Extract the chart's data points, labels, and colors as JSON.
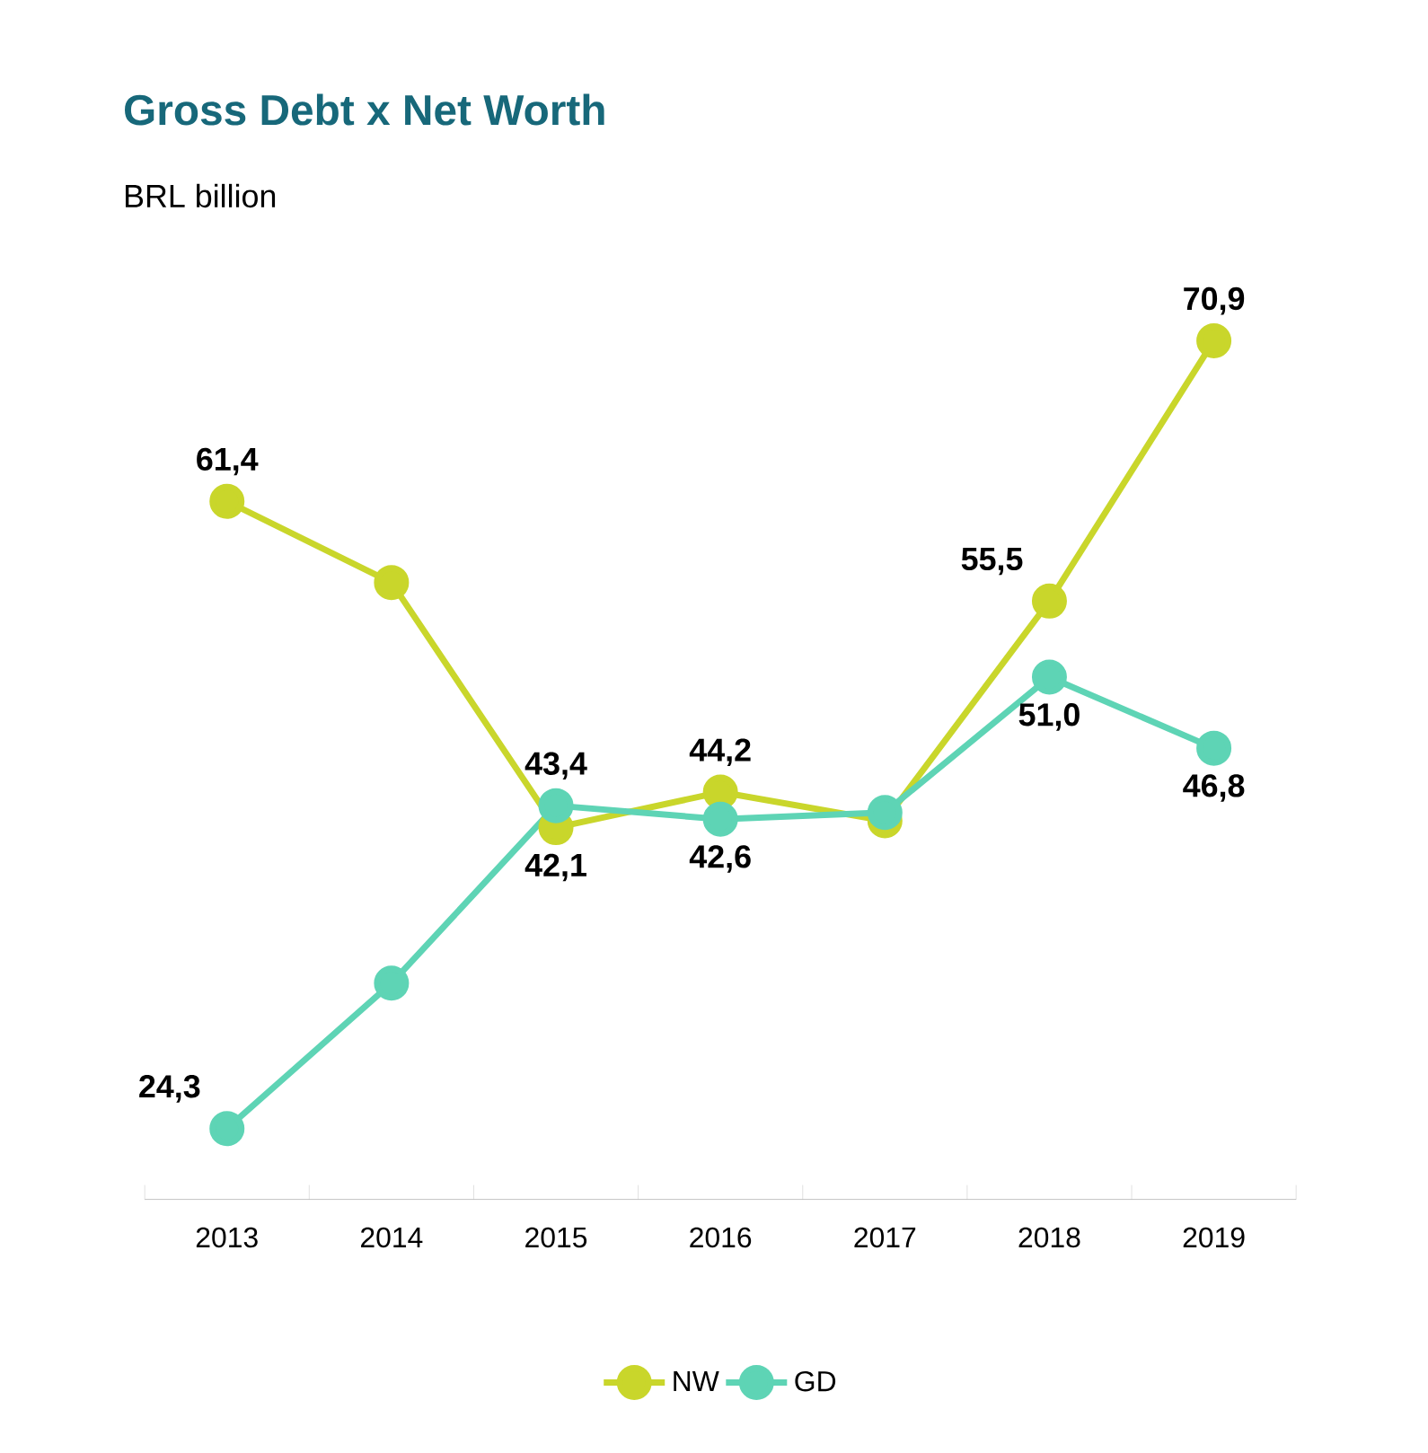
{
  "chart_data": {
    "type": "line",
    "title": "Gross Debt x Net Worth",
    "subtitle": "BRL billion",
    "categories": [
      "2013",
      "2014",
      "2015",
      "2016",
      "2017",
      "2018",
      "2019"
    ],
    "series": [
      {
        "name": "NW",
        "color": "#c9d62b",
        "values": [
          61.4,
          56.6,
          42.1,
          44.2,
          42.5,
          55.5,
          70.9
        ],
        "value_labels": [
          "61,4",
          null,
          "42,1",
          "44,2",
          null,
          "55,5",
          "70,9"
        ]
      },
      {
        "name": "GD",
        "color": "#5ed4b5",
        "values": [
          24.3,
          32.9,
          43.4,
          42.6,
          43.0,
          51.0,
          46.8
        ],
        "value_labels": [
          "24,3",
          null,
          "43,4",
          "42,6",
          null,
          "51,0",
          "46,8"
        ]
      }
    ],
    "marker": "circle",
    "line_style": "solid",
    "legend": "bottom",
    "grid": false
  }
}
